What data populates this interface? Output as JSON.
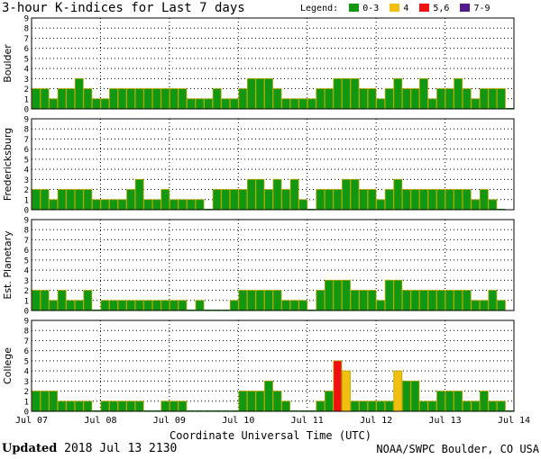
{
  "title": "3-hour K-indices for Last 7 days",
  "legend": {
    "label": "Legend:",
    "items": [
      {
        "label": "0-3",
        "color": "#129712"
      },
      {
        "label": "4",
        "color": "#f2be10"
      },
      {
        "label": "5,6",
        "color": "#ef1111"
      },
      {
        "label": "7-9",
        "color": "#551a8b"
      }
    ]
  },
  "footer": {
    "updated_label": "Updated",
    "updated_value": "2018 Jul 13 2130",
    "source": "NOAA/SWPC Boulder, CO USA"
  },
  "chart_data": {
    "type": "bar",
    "xlabel": "Coordinate Universal Time (UTC)",
    "x_ticks": [
      "Jul 07",
      "Jul 08",
      "Jul 09",
      "Jul 10",
      "Jul 11",
      "Jul 12",
      "Jul 13",
      "Jul 14"
    ],
    "y_ticks": [
      "0",
      "1",
      "2",
      "3",
      "4",
      "5",
      "6",
      "7",
      "8",
      "9"
    ],
    "ylim": [
      0,
      9
    ],
    "bars_per_day": 8,
    "grid": "dotted",
    "panels": [
      {
        "name": "Boulder",
        "values": [
          2,
          2,
          1,
          2,
          2,
          3,
          2,
          1,
          1,
          2,
          2,
          2,
          2,
          2,
          2,
          2,
          2,
          2,
          1,
          1,
          1,
          2,
          1,
          1,
          2,
          3,
          3,
          3,
          2,
          1,
          1,
          1,
          1,
          2,
          2,
          3,
          3,
          3,
          2,
          2,
          1,
          2,
          3,
          2,
          2,
          3,
          1,
          2,
          2,
          3,
          2,
          1,
          2,
          2,
          2,
          0
        ]
      },
      {
        "name": "Fredericksburg",
        "values": [
          2,
          2,
          1,
          2,
          2,
          2,
          2,
          1,
          1,
          1,
          1,
          2,
          3,
          1,
          1,
          2,
          1,
          1,
          1,
          1,
          0,
          2,
          2,
          2,
          2,
          3,
          3,
          2,
          3,
          2,
          3,
          1,
          0,
          2,
          2,
          2,
          3,
          3,
          2,
          2,
          1,
          2,
          3,
          2,
          2,
          2,
          2,
          2,
          2,
          2,
          2,
          1,
          2,
          1,
          0,
          null
        ]
      },
      {
        "name": "Est. Planetary",
        "values": [
          2,
          2,
          1,
          2,
          1,
          1,
          2,
          0,
          1,
          1,
          1,
          1,
          1,
          1,
          1,
          1,
          1,
          1,
          0,
          1,
          0,
          0,
          0,
          1,
          2,
          2,
          2,
          2,
          2,
          1,
          1,
          1,
          0,
          2,
          3,
          3,
          3,
          2,
          2,
          2,
          1,
          3,
          3,
          2,
          2,
          2,
          2,
          2,
          2,
          2,
          2,
          1,
          1,
          2,
          1,
          null
        ]
      },
      {
        "name": "College",
        "values": [
          2,
          2,
          2,
          1,
          1,
          1,
          1,
          0,
          1,
          1,
          1,
          1,
          1,
          0,
          0,
          1,
          1,
          1,
          0,
          0,
          0,
          0,
          0,
          0,
          2,
          2,
          2,
          3,
          2,
          1,
          0,
          0,
          0,
          1,
          2,
          5,
          4,
          1,
          1,
          1,
          1,
          1,
          4,
          3,
          3,
          1,
          1,
          2,
          2,
          2,
          1,
          1,
          2,
          1,
          1,
          0
        ]
      }
    ]
  }
}
